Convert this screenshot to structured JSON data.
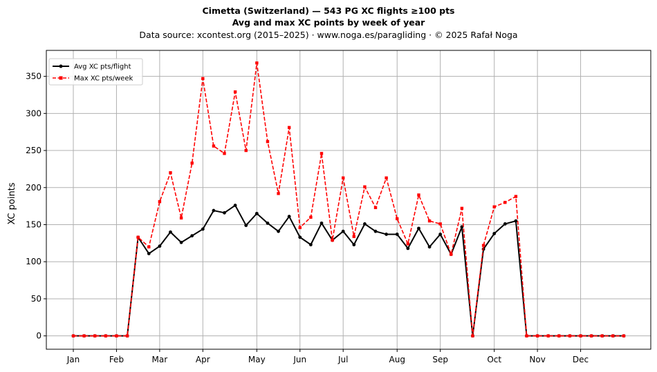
{
  "chart_data": {
    "type": "line",
    "title": "Cimetta (Switzerland)  —  543 PG XC flights ≥100 pts",
    "subtitle": "Avg and max XC points by week of year",
    "source": "Data source: xcontest.org (2015–2025)  ·  www.noga.es/paragliding  ·  © 2025 Rafał Noga",
    "xlabel": "",
    "ylabel": "XC points",
    "ylim": [
      -18,
      385
    ],
    "xlim": [
      -2.5,
      53.5
    ],
    "yticks": [
      0,
      50,
      100,
      150,
      200,
      250,
      300,
      350
    ],
    "xticks": [
      {
        "label": "Jan",
        "week": 0
      },
      {
        "label": "Feb",
        "week": 4
      },
      {
        "label": "Mar",
        "week": 8
      },
      {
        "label": "Apr",
        "week": 12
      },
      {
        "label": "May",
        "week": 17
      },
      {
        "label": "Jun",
        "week": 21
      },
      {
        "label": "Jul",
        "week": 25
      },
      {
        "label": "Aug",
        "week": 30
      },
      {
        "label": "Sep",
        "week": 34
      },
      {
        "label": "Oct",
        "week": 39
      },
      {
        "label": "Nov",
        "week": 43
      },
      {
        "label": "Dec",
        "week": 47
      }
    ],
    "grid": true,
    "legend_position": "top-left",
    "x": [
      0,
      1,
      2,
      3,
      4,
      5,
      6,
      7,
      8,
      9,
      10,
      11,
      12,
      13,
      14,
      15,
      16,
      17,
      18,
      19,
      20,
      21,
      22,
      23,
      24,
      25,
      26,
      27,
      28,
      29,
      30,
      31,
      32,
      33,
      34,
      35,
      36,
      37,
      38,
      39,
      40,
      41,
      42,
      43,
      44,
      45,
      46,
      47,
      48,
      49,
      50,
      51
    ],
    "series": [
      {
        "name": "Avg XC pts/flight",
        "color": "#000000",
        "style": "solid",
        "marker": "circle",
        "values": [
          0,
          0,
          0,
          0,
          0,
          0,
          133,
          111,
          121,
          140,
          126,
          135,
          144,
          169,
          166,
          176,
          149,
          165,
          152,
          141,
          161,
          133,
          123,
          152,
          129,
          141,
          123,
          151,
          141,
          137,
          137,
          118,
          145,
          120,
          137,
          110,
          147,
          0,
          117,
          138,
          151,
          155,
          0,
          0,
          0,
          0,
          0,
          0,
          0,
          0,
          0,
          0
        ]
      },
      {
        "name": "Max XC pts/week",
        "color": "#ff0000",
        "style": "dashed",
        "marker": "square",
        "values": [
          0,
          0,
          0,
          0,
          0,
          0,
          133,
          120,
          181,
          220,
          159,
          233,
          347,
          256,
          246,
          329,
          250,
          368,
          262,
          192,
          281,
          146,
          160,
          246,
          129,
          213,
          134,
          201,
          173,
          213,
          158,
          124,
          190,
          155,
          151,
          110,
          172,
          0,
          122,
          174,
          180,
          188,
          0,
          0,
          0,
          0,
          0,
          0,
          0,
          0,
          0,
          0
        ]
      }
    ]
  }
}
